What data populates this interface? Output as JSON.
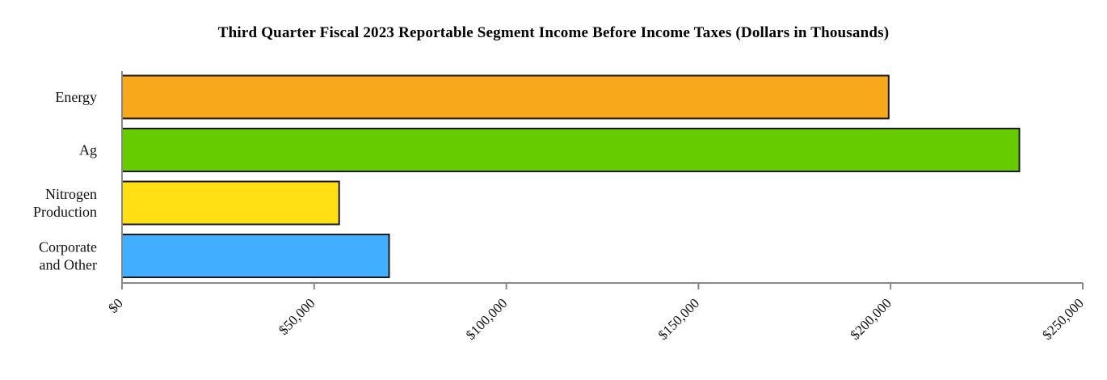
{
  "chart_data": {
    "type": "bar",
    "orientation": "horizontal",
    "title": "Third Quarter Fiscal 2023 Reportable Segment Income Before Income Taxes (Dollars in Thousands)",
    "categories": [
      [
        "Energy"
      ],
      [
        "Ag"
      ],
      [
        "Nitrogen",
        "Production"
      ],
      [
        "Corporate",
        "and Other"
      ]
    ],
    "values": [
      199500,
      233500,
      56500,
      69500
    ],
    "colors": [
      "#F7A81B",
      "#66CC00",
      "#FFE014",
      "#42AEFF"
    ],
    "xlim": [
      0,
      250000
    ],
    "xticks": [
      0,
      50000,
      100000,
      150000,
      200000,
      250000
    ],
    "xtick_labels": [
      "$0",
      "$50,000",
      "$100,000",
      "$150,000",
      "$200,000",
      "$250,000"
    ],
    "xlabel": "",
    "ylabel": "",
    "grid": false,
    "legend": "none"
  }
}
